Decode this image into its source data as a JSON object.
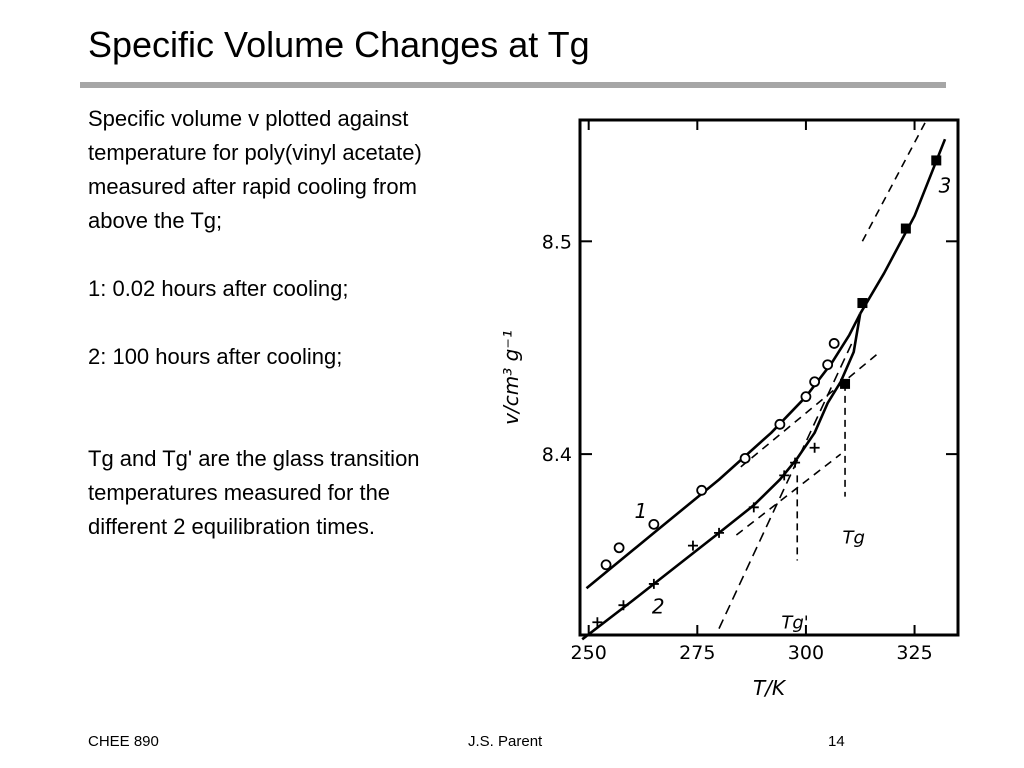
{
  "slide": {
    "title": "Specific Volume Changes at Tg",
    "paragraphs": [
      "Specific volume v plotted against\ntemperature for poly(vinyl acetate)\nmeasured after rapid cooling from\nabove the Tg;",
      "1: 0.02 hours after cooling;",
      "2: 100 hours after cooling;",
      "Tg and Tg' are the glass transition\ntemperatures measured for the\ndifferent 2 equilibration times."
    ],
    "footer": {
      "left": "CHEE 890",
      "center": "J.S. Parent",
      "right": "14"
    }
  },
  "chart_data": {
    "type": "line",
    "xlabel": "T/K",
    "ylabel": "v/cm³ g⁻¹",
    "xlim": [
      248,
      335
    ],
    "ylim": [
      8.315,
      8.557
    ],
    "x_ticks": [
      250,
      275,
      300,
      325
    ],
    "y_ticks": [
      8.4,
      8.5
    ],
    "grid": false,
    "series": [
      {
        "name": "1",
        "marker": "open-circle",
        "line": "solid",
        "points": [
          [
            254,
            8.348
          ],
          [
            257,
            8.356
          ],
          [
            265,
            8.367
          ],
          [
            276,
            8.383
          ],
          [
            286,
            8.398
          ],
          [
            294,
            8.414
          ],
          [
            300,
            8.427
          ],
          [
            302,
            8.434
          ],
          [
            305,
            8.442
          ],
          [
            306.5,
            8.452
          ]
        ],
        "curve": [
          [
            249.5,
            8.337
          ],
          [
            265,
            8.363
          ],
          [
            280,
            8.388
          ],
          [
            292,
            8.41
          ],
          [
            300,
            8.427
          ],
          [
            306,
            8.443
          ],
          [
            310,
            8.456
          ],
          [
            312.5,
            8.466
          ]
        ]
      },
      {
        "name": "2",
        "marker": "plus",
        "line": "solid",
        "points": [
          [
            252,
            8.321
          ],
          [
            258,
            8.329
          ],
          [
            265,
            8.339
          ],
          [
            274,
            8.357
          ],
          [
            280,
            8.363
          ],
          [
            288,
            8.375
          ],
          [
            295,
            8.39
          ],
          [
            297.5,
            8.396
          ],
          [
            302,
            8.403
          ]
        ],
        "curve": [
          [
            248.5,
            8.313
          ],
          [
            260,
            8.331
          ],
          [
            270,
            8.347
          ],
          [
            280,
            8.363
          ],
          [
            288,
            8.376
          ],
          [
            294,
            8.388
          ],
          [
            298,
            8.398
          ],
          [
            302,
            8.41
          ],
          [
            305,
            8.424
          ],
          [
            308,
            8.434
          ],
          [
            311,
            8.448
          ],
          [
            312.5,
            8.466
          ]
        ]
      },
      {
        "name": "3",
        "marker": "filled-square",
        "line": "solid",
        "points": [
          [
            309,
            8.433
          ],
          [
            313,
            8.471
          ],
          [
            323,
            8.506
          ],
          [
            330,
            8.538
          ]
        ],
        "curve": [
          [
            312.5,
            8.466
          ],
          [
            318,
            8.485
          ],
          [
            325,
            8.512
          ],
          [
            332,
            8.548
          ]
        ]
      }
    ],
    "guide_lines": [
      {
        "style": "dashed",
        "points": [
          [
            285,
            8.394
          ],
          [
            317,
            8.448
          ]
        ]
      },
      {
        "style": "dashed",
        "points": [
          [
            284,
            8.362
          ],
          [
            308,
            8.4
          ]
        ]
      },
      {
        "style": "dashed",
        "points": [
          [
            280,
            8.318
          ],
          [
            311,
            8.454
          ]
        ]
      },
      {
        "style": "dashed",
        "points": [
          [
            313,
            8.5
          ],
          [
            328,
            8.558
          ]
        ]
      }
    ],
    "transition_markers": [
      {
        "label": "Tg",
        "x": 309,
        "from_y": 8.433,
        "to_y": 8.38
      },
      {
        "label": "Tg'",
        "x": 298,
        "from_y": 8.39,
        "to_y": 8.35
      }
    ],
    "annotations": [
      "1",
      "2",
      "3",
      "Tg",
      "Tg'"
    ]
  }
}
